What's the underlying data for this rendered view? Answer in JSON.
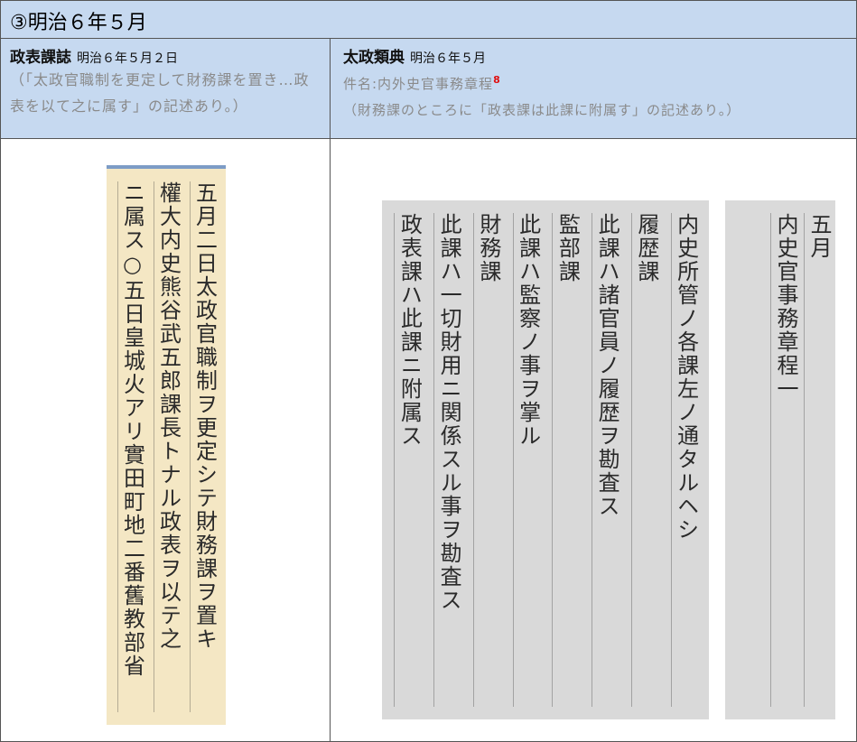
{
  "header": {
    "title": "③明治６年５月"
  },
  "left": {
    "heading": "政表課誌",
    "date": "明治６年５月２日",
    "body": "（「太政官職制を更定して財務課を置き…政表を以て之に属す」の記述あり。）"
  },
  "right": {
    "heading": "太政類典",
    "date": "明治６年５月",
    "subject": "件名:内外史官事務章程",
    "note_mark": "8",
    "body": "（財務課のところに「政表課は此課に附属す」の記述あり。）"
  },
  "images": {
    "left": {
      "columns": [
        "五月二日太政官職制ヲ更定シテ財務課ヲ置キ",
        "權大内史熊谷武五郎課長トナル政表ヲ以テ之",
        "ニ属ス○五日皇城火アリ實田町地二番舊教部省"
      ]
    },
    "middle": {
      "columns": [
        "内史所管ノ各課左ノ通タルヘシ",
        "履歴課",
        "此課ハ諸官員ノ履歴ヲ勘査ス",
        "監部課",
        "此課ハ監察ノ事ヲ掌ル",
        "財務課",
        "此課ハ一切財用ニ関係スル事ヲ勘査ス",
        "政表課ハ此課ニ附属ス"
      ]
    },
    "right": {
      "columns": [
        "五月",
        "内史官事務章程一"
      ]
    }
  }
}
